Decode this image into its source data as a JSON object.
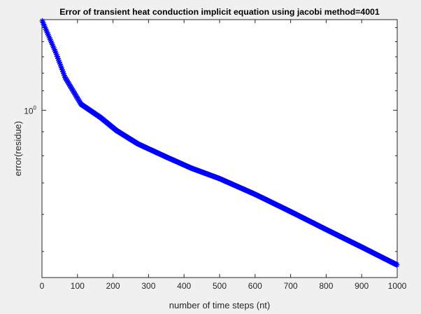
{
  "chart_data": {
    "type": "line",
    "title": "Error of transient heat conduction implicit equation using jacobi method=4001",
    "xlabel": "number of time steps (nt)",
    "ylabel": "error(residue)",
    "xlim": [
      0,
      1000
    ],
    "ylim": [
      0.44,
      1.56
    ],
    "yscale": "log",
    "grid": false,
    "xticks": [
      {
        "value": 0,
        "label": "0"
      },
      {
        "value": 100,
        "label": "100"
      },
      {
        "value": 200,
        "label": "200"
      },
      {
        "value": 300,
        "label": "300"
      },
      {
        "value": 400,
        "label": "400"
      },
      {
        "value": 500,
        "label": "500"
      },
      {
        "value": 600,
        "label": "600"
      },
      {
        "value": 700,
        "label": "700"
      },
      {
        "value": 800,
        "label": "800"
      },
      {
        "value": 900,
        "label": "900"
      },
      {
        "value": 1000,
        "label": "1000"
      }
    ],
    "yticks": [
      {
        "value": 1.0,
        "base": "10",
        "exponent": "0"
      }
    ],
    "yminor_ticks": [
      0.5,
      0.6,
      0.7,
      0.8,
      0.9,
      1.1,
      1.2,
      1.3,
      1.4,
      1.5
    ],
    "marker": "star",
    "series": [
      {
        "color": "#0000ff",
        "x": [
          1,
          40,
          65,
          110,
          165,
          210,
          270,
          350,
          420,
          500,
          600,
          700,
          800,
          900,
          1000
        ],
        "y": [
          1.55,
          1.32,
          1.175,
          1.03,
          0.965,
          0.905,
          0.848,
          0.795,
          0.753,
          0.715,
          0.662,
          0.608,
          0.557,
          0.511,
          0.468
        ]
      }
    ]
  }
}
